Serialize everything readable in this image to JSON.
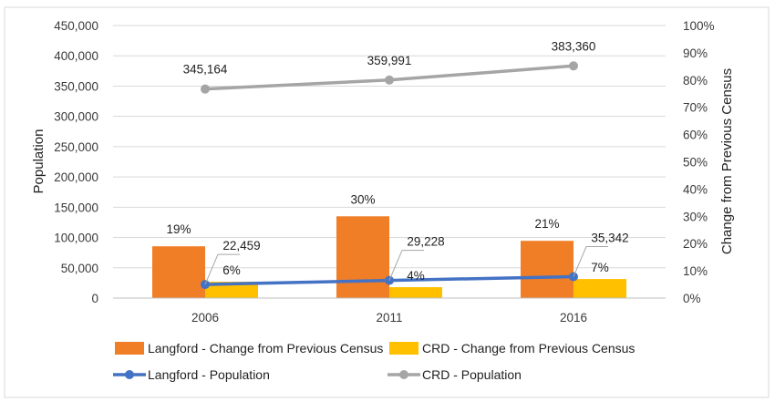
{
  "chart_data": {
    "type": "bar",
    "categories": [
      "2006",
      "2011",
      "2016"
    ],
    "series": [
      {
        "name": "Langford - Change from Previous Census",
        "type": "bar",
        "axis": "right",
        "values": [
          19,
          30,
          21
        ],
        "labels": [
          "19%",
          "30%",
          "21%"
        ],
        "color": "#f07e26"
      },
      {
        "name": "CRD - Change from Previous Census",
        "type": "bar",
        "axis": "right",
        "values": [
          6,
          4,
          7
        ],
        "labels": [
          "6%",
          "4%",
          "7%"
        ],
        "color": "#ffc000"
      },
      {
        "name": "Langford - Population",
        "type": "line",
        "axis": "left",
        "values": [
          22459,
          29228,
          35342
        ],
        "labels": [
          "22,459",
          "29,228",
          "35,342"
        ],
        "color": "#4472c4"
      },
      {
        "name": "CRD - Population",
        "type": "line",
        "axis": "left",
        "values": [
          345164,
          359991,
          383360
        ],
        "labels": [
          "345,164",
          "359,991",
          "383,360"
        ],
        "color": "#a5a5a5"
      }
    ],
    "left_axis": {
      "label": "Population",
      "min": 0,
      "max": 450000,
      "ticks": [
        "0",
        "50,000",
        "100,000",
        "150,000",
        "200,000",
        "250,000",
        "300,000",
        "350,000",
        "400,000",
        "450,000"
      ]
    },
    "right_axis": {
      "label": "Change from Previous Census",
      "min": 0,
      "max": 100,
      "ticks": [
        "0%",
        "10%",
        "20%",
        "30%",
        "40%",
        "50%",
        "60%",
        "70%",
        "80%",
        "90%",
        "100%"
      ]
    },
    "grid": true,
    "legend_position": "bottom",
    "title": ""
  }
}
